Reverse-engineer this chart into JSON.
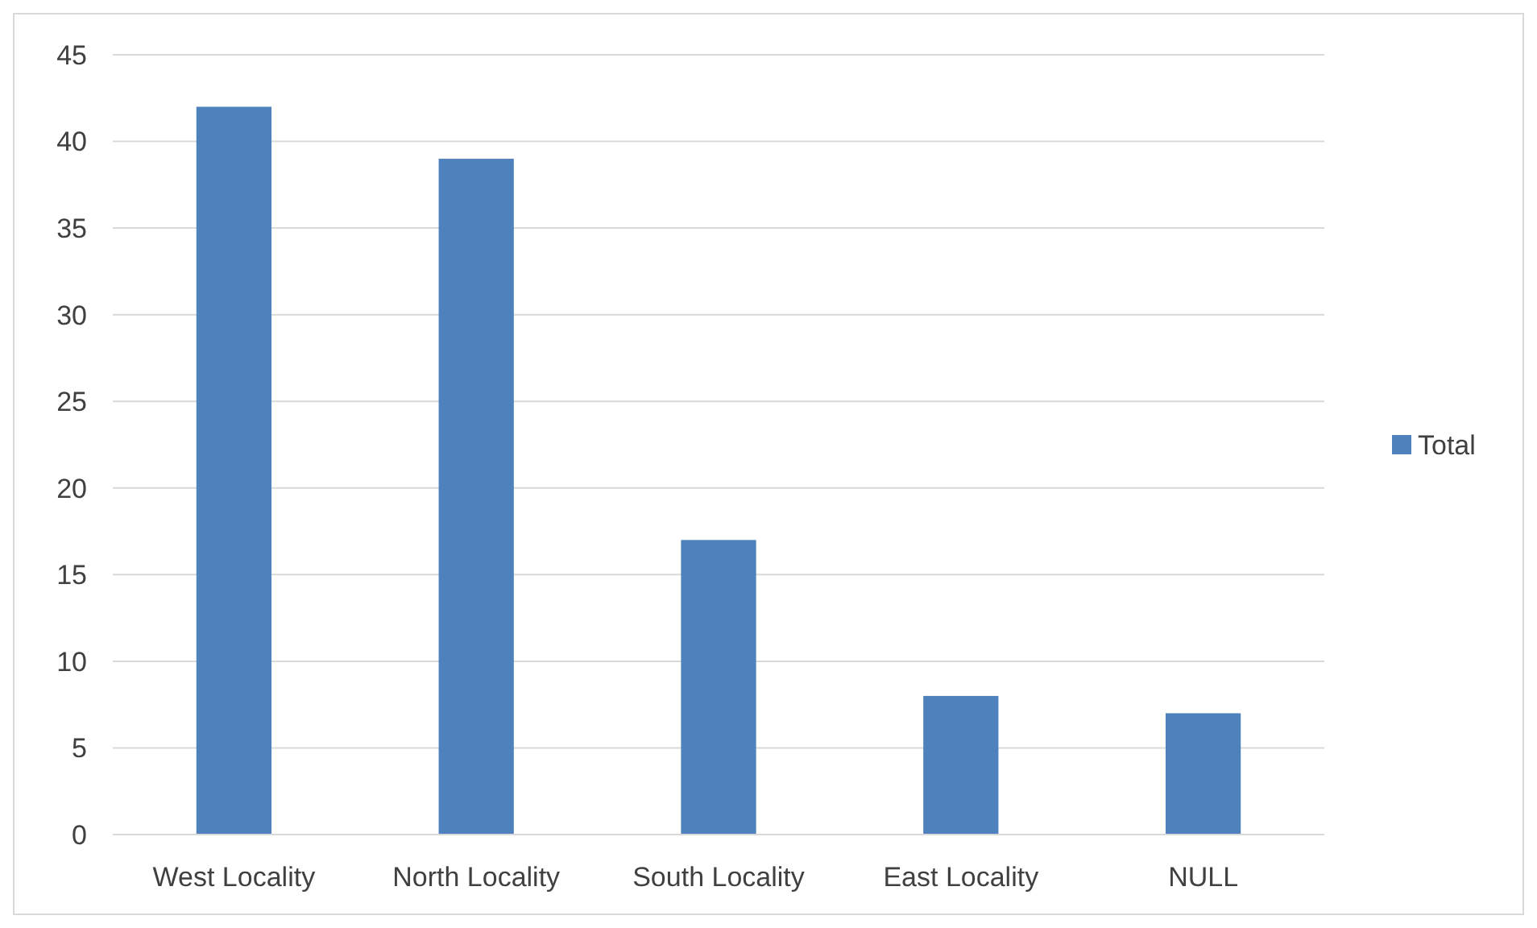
{
  "chart_data": {
    "type": "bar",
    "categories": [
      "West Locality",
      "North Locality",
      "South Locality",
      "East Locality",
      "NULL"
    ],
    "series": [
      {
        "name": "Total",
        "color": "#4f81bd",
        "values": [
          42,
          39,
          17,
          8,
          7
        ]
      }
    ],
    "ylim": [
      0,
      45
    ],
    "yticks": [
      0,
      5,
      10,
      15,
      20,
      25,
      30,
      35,
      40,
      45
    ],
    "grid": "y",
    "legend": "right"
  }
}
